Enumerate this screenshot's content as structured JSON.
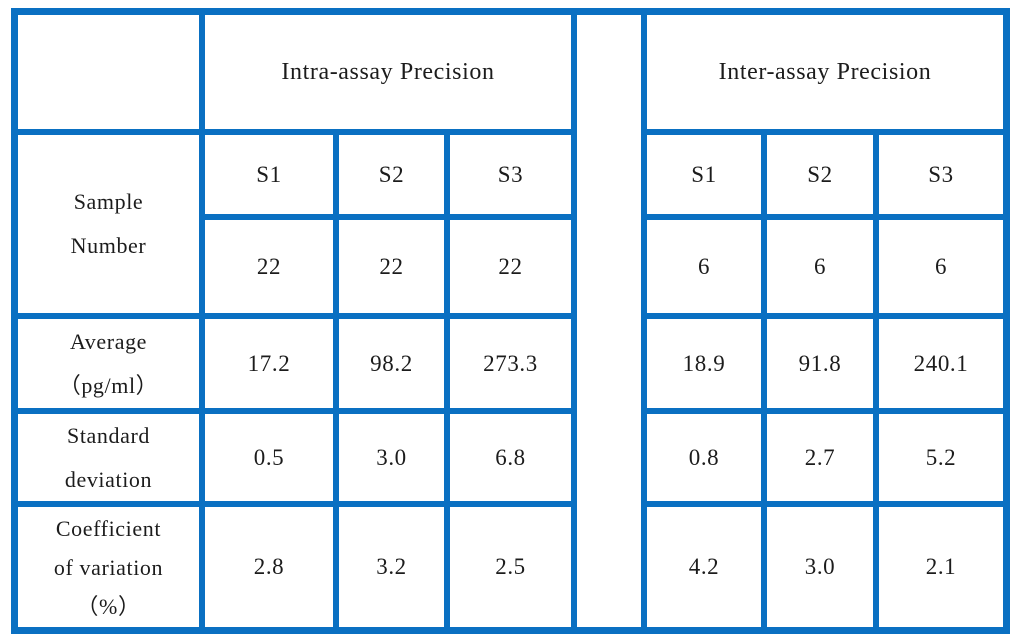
{
  "table": {
    "border_color": "#0a70c2",
    "text_color": "#1c1c1c",
    "groups": [
      {
        "label": "Intra-assay Precision"
      },
      {
        "label": "Inter-assay Precision"
      }
    ],
    "row_labels": {
      "sample_number": [
        "Sample",
        "Number"
      ],
      "average": [
        "Average",
        "（pg/ml）"
      ],
      "std": [
        "Standard",
        "deviation"
      ],
      "cv": [
        "Coefficient",
        "of variation",
        "（%）"
      ]
    },
    "intra": {
      "samples": [
        "S1",
        "S2",
        "S3"
      ],
      "counts": [
        "22",
        "22",
        "22"
      ],
      "average": [
        "17.2",
        "98.2",
        "273.3"
      ],
      "std": [
        "0.5",
        "3.0",
        "6.8"
      ],
      "cv": [
        "2.8",
        "3.2",
        "2.5"
      ]
    },
    "inter": {
      "samples": [
        "S1",
        "S2",
        "S3"
      ],
      "counts": [
        "6",
        "6",
        "6"
      ],
      "average": [
        "18.9",
        "91.8",
        "240.1"
      ],
      "std": [
        "0.8",
        "2.7",
        "5.2"
      ],
      "cv": [
        "4.2",
        "3.0",
        "2.1"
      ]
    }
  }
}
